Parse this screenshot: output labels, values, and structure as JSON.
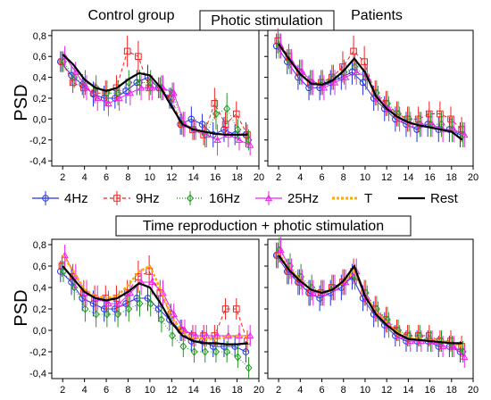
{
  "figure": {
    "label_control": "Control group",
    "label_patients": "Patients",
    "section_photic": "Photic stimulation",
    "section_time": "Time reproduction + photic stimulation",
    "ylabel": "PSD"
  },
  "legend": [
    {
      "key": "4hz",
      "label": "4Hz",
      "color": "#2233dd",
      "marker": "circle",
      "dash": "none"
    },
    {
      "key": "9hz",
      "label": "9Hz",
      "color": "#ee2222",
      "marker": "square",
      "dash": "4,3"
    },
    {
      "key": "16hz",
      "label": "16Hz",
      "color": "#229922",
      "marker": "diamond",
      "dash": "1,2"
    },
    {
      "key": "25hz",
      "label": "25Hz",
      "color": "#ee22ee",
      "marker": "triangle",
      "dash": "none"
    },
    {
      "key": "t",
      "label": "T",
      "color": "#ffaa00",
      "marker": "none",
      "dash": "3,2"
    },
    {
      "key": "rest",
      "label": "Rest",
      "color": "#000000",
      "marker": "none",
      "dash": "none"
    }
  ],
  "chart_data": [
    {
      "type": "line",
      "panel": "photic-control",
      "xlim": [
        1,
        20
      ],
      "ylim": [
        -0.45,
        0.85
      ],
      "xticks": [
        2,
        4,
        6,
        8,
        10,
        12,
        14,
        16,
        18,
        20
      ],
      "yticks": [
        -0.4,
        -0.2,
        0.0,
        0.2,
        0.4,
        0.6,
        0.8
      ],
      "ytick_labels": [
        "-0,4",
        "-0,2",
        "0,0",
        "0,2",
        "0,4",
        "0,6",
        "0,8"
      ],
      "x": [
        2,
        3,
        4,
        5,
        6,
        7,
        8,
        9,
        10,
        11,
        12,
        13,
        14,
        15,
        16,
        17,
        18,
        19
      ],
      "series": [
        {
          "name": "4Hz",
          "values": [
            0.55,
            0.42,
            0.33,
            0.24,
            0.2,
            0.2,
            0.27,
            0.35,
            0.4,
            0.3,
            0.2,
            -0.05,
            0.0,
            -0.05,
            -0.15,
            -0.1,
            -0.15,
            -0.15
          ],
          "err": [
            0.1,
            0.1,
            0.1,
            0.12,
            0.12,
            0.1,
            0.12,
            0.12,
            0.12,
            0.1,
            0.1,
            0.1,
            0.12,
            0.1,
            0.12,
            0.12,
            0.1,
            0.12
          ]
        },
        {
          "name": "9Hz",
          "values": [
            0.55,
            0.35,
            0.3,
            0.25,
            0.25,
            0.3,
            0.65,
            0.6,
            0.3,
            0.3,
            0.2,
            -0.05,
            -0.1,
            -0.15,
            0.15,
            -0.05,
            0.05,
            -0.15
          ],
          "err": [
            0.1,
            0.1,
            0.1,
            0.1,
            0.12,
            0.12,
            0.15,
            0.15,
            0.12,
            0.1,
            0.1,
            0.1,
            0.1,
            0.1,
            0.15,
            0.12,
            0.12,
            0.1
          ]
        },
        {
          "name": "16Hz",
          "values": [
            0.55,
            0.4,
            0.35,
            0.3,
            0.25,
            0.25,
            0.35,
            0.35,
            0.35,
            0.3,
            0.25,
            -0.05,
            -0.1,
            -0.15,
            0.05,
            0.1,
            -0.1,
            -0.2
          ],
          "err": [
            0.1,
            0.1,
            0.12,
            0.12,
            0.12,
            0.12,
            0.12,
            0.12,
            0.12,
            0.12,
            0.1,
            0.12,
            0.1,
            0.12,
            0.15,
            0.15,
            0.1,
            0.1
          ]
        },
        {
          "name": "25Hz",
          "values": [
            0.6,
            0.45,
            0.3,
            0.2,
            0.15,
            0.2,
            0.25,
            0.3,
            0.3,
            0.3,
            0.25,
            -0.05,
            -0.1,
            -0.15,
            -0.2,
            -0.15,
            -0.2,
            -0.25
          ],
          "err": [
            0.1,
            0.1,
            0.12,
            0.12,
            0.12,
            0.12,
            0.12,
            0.12,
            0.12,
            0.12,
            0.1,
            0.12,
            0.1,
            0.12,
            0.15,
            0.12,
            0.1,
            0.1
          ]
        },
        {
          "name": "Rest",
          "values": [
            0.62,
            0.52,
            0.38,
            0.3,
            0.27,
            0.3,
            0.38,
            0.44,
            0.42,
            0.3,
            0.12,
            -0.05,
            -0.1,
            -0.12,
            -0.14,
            -0.15,
            -0.15,
            -0.15
          ]
        }
      ]
    },
    {
      "type": "line",
      "panel": "photic-patients",
      "xlim": [
        1,
        20
      ],
      "ylim": [
        -0.45,
        0.85
      ],
      "xticks": [
        2,
        4,
        6,
        8,
        10,
        12,
        14,
        16,
        18,
        20
      ],
      "yticks": [
        -0.4,
        -0.2,
        0.0,
        0.2,
        0.4,
        0.6,
        0.8
      ],
      "ytick_labels": [
        "-0,4",
        "-0,2",
        "0,0",
        "0,2",
        "0,4",
        "0,6",
        "0,8"
      ],
      "x": [
        2,
        3,
        4,
        5,
        6,
        7,
        8,
        9,
        10,
        11,
        12,
        13,
        14,
        15,
        16,
        17,
        18,
        19
      ],
      "series": [
        {
          "name": "4Hz",
          "values": [
            0.7,
            0.55,
            0.4,
            0.3,
            0.3,
            0.35,
            0.4,
            0.45,
            0.35,
            0.2,
            0.1,
            0.0,
            -0.05,
            -0.1,
            -0.05,
            -0.1,
            -0.1,
            -0.15
          ],
          "err": [
            0.12,
            0.12,
            0.12,
            0.12,
            0.12,
            0.12,
            0.12,
            0.12,
            0.12,
            0.12,
            0.12,
            0.12,
            0.12,
            0.12,
            0.12,
            0.12,
            0.12,
            0.12
          ]
        },
        {
          "name": "9Hz",
          "values": [
            0.75,
            0.6,
            0.45,
            0.35,
            0.35,
            0.4,
            0.5,
            0.65,
            0.55,
            0.25,
            0.15,
            0.05,
            0.0,
            0.0,
            0.05,
            0.05,
            0.0,
            -0.1
          ],
          "err": [
            0.12,
            0.12,
            0.12,
            0.12,
            0.12,
            0.12,
            0.15,
            0.15,
            0.15,
            0.12,
            0.12,
            0.12,
            0.12,
            0.12,
            0.12,
            0.12,
            0.12,
            0.12
          ]
        },
        {
          "name": "16Hz",
          "values": [
            0.7,
            0.55,
            0.45,
            0.35,
            0.35,
            0.4,
            0.45,
            0.5,
            0.4,
            0.25,
            0.15,
            0.05,
            0.0,
            -0.05,
            -0.05,
            -0.05,
            -0.1,
            -0.15
          ],
          "err": [
            0.12,
            0.12,
            0.12,
            0.12,
            0.12,
            0.12,
            0.12,
            0.12,
            0.12,
            0.12,
            0.12,
            0.12,
            0.12,
            0.12,
            0.12,
            0.12,
            0.12,
            0.12
          ]
        },
        {
          "name": "25Hz",
          "values": [
            0.7,
            0.55,
            0.45,
            0.35,
            0.3,
            0.35,
            0.4,
            0.45,
            0.4,
            0.2,
            0.1,
            0.0,
            -0.05,
            -0.05,
            -0.05,
            -0.1,
            -0.1,
            -0.15
          ],
          "err": [
            0.12,
            0.12,
            0.12,
            0.12,
            0.12,
            0.12,
            0.12,
            0.12,
            0.12,
            0.12,
            0.12,
            0.12,
            0.12,
            0.12,
            0.12,
            0.12,
            0.12,
            0.12
          ]
        },
        {
          "name": "Rest",
          "values": [
            0.72,
            0.57,
            0.43,
            0.34,
            0.33,
            0.37,
            0.46,
            0.58,
            0.45,
            0.22,
            0.1,
            0.02,
            -0.03,
            -0.06,
            -0.08,
            -0.1,
            -0.12,
            -0.2
          ]
        }
      ]
    },
    {
      "type": "line",
      "panel": "time-control",
      "xlim": [
        1,
        20
      ],
      "ylim": [
        -0.45,
        0.85
      ],
      "xticks": [
        2,
        4,
        6,
        8,
        10,
        12,
        14,
        16,
        18,
        20
      ],
      "yticks": [
        -0.4,
        -0.2,
        0.0,
        0.2,
        0.4,
        0.6,
        0.8
      ],
      "ytick_labels": [
        "-0,4",
        "-0,2",
        "0,0",
        "0,2",
        "0,4",
        "0,6",
        "0,8"
      ],
      "x": [
        2,
        3,
        4,
        5,
        6,
        7,
        8,
        9,
        10,
        11,
        12,
        13,
        14,
        15,
        16,
        17,
        18,
        19
      ],
      "series": [
        {
          "name": "4Hz",
          "values": [
            0.55,
            0.45,
            0.3,
            0.25,
            0.2,
            0.2,
            0.25,
            0.3,
            0.3,
            0.2,
            0.1,
            0.0,
            -0.1,
            -0.1,
            -0.15,
            -0.15,
            -0.15,
            -0.2
          ],
          "err": [
            0.1,
            0.12,
            0.12,
            0.12,
            0.12,
            0.12,
            0.12,
            0.12,
            0.12,
            0.12,
            0.1,
            0.1,
            0.1,
            0.1,
            0.1,
            0.1,
            0.1,
            0.1
          ]
        },
        {
          "name": "9Hz",
          "values": [
            0.6,
            0.5,
            0.35,
            0.3,
            0.3,
            0.3,
            0.35,
            0.5,
            0.55,
            0.35,
            0.15,
            0.0,
            -0.05,
            -0.05,
            -0.05,
            0.2,
            0.2,
            -0.1
          ],
          "err": [
            0.1,
            0.12,
            0.12,
            0.12,
            0.12,
            0.12,
            0.12,
            0.15,
            0.15,
            0.12,
            0.1,
            0.1,
            0.1,
            0.1,
            0.1,
            0.1,
            0.1,
            0.1
          ]
        },
        {
          "name": "16Hz",
          "values": [
            0.55,
            0.4,
            0.2,
            0.15,
            0.15,
            0.15,
            0.2,
            0.25,
            0.25,
            0.1,
            -0.05,
            -0.15,
            -0.2,
            -0.2,
            -0.2,
            -0.2,
            -0.25,
            -0.35
          ],
          "err": [
            0.1,
            0.12,
            0.12,
            0.12,
            0.12,
            0.12,
            0.12,
            0.12,
            0.12,
            0.12,
            0.1,
            0.1,
            0.1,
            0.1,
            0.1,
            0.1,
            0.1,
            0.1
          ]
        },
        {
          "name": "25Hz",
          "values": [
            0.7,
            0.5,
            0.35,
            0.3,
            0.25,
            0.25,
            0.35,
            0.45,
            0.45,
            0.35,
            0.15,
            0.0,
            -0.05,
            -0.05,
            -0.05,
            -0.05,
            -0.05,
            -0.05
          ],
          "err": [
            0.1,
            0.12,
            0.12,
            0.12,
            0.12,
            0.12,
            0.12,
            0.12,
            0.12,
            0.12,
            0.1,
            0.1,
            0.1,
            0.1,
            0.1,
            0.1,
            0.1,
            0.1
          ]
        },
        {
          "name": "T",
          "values": [
            0.7,
            0.55,
            0.38,
            0.32,
            0.3,
            0.32,
            0.42,
            0.55,
            0.6,
            0.38,
            0.12,
            -0.02,
            -0.07,
            -0.08,
            -0.08,
            -0.06,
            -0.05,
            -0.06
          ]
        },
        {
          "name": "Rest",
          "values": [
            0.6,
            0.48,
            0.36,
            0.3,
            0.28,
            0.3,
            0.36,
            0.44,
            0.4,
            0.25,
            0.07,
            -0.05,
            -0.1,
            -0.12,
            -0.12,
            -0.13,
            -0.13,
            -0.12
          ]
        }
      ]
    },
    {
      "type": "line",
      "panel": "time-patients",
      "xlim": [
        1,
        20
      ],
      "ylim": [
        -0.45,
        0.85
      ],
      "xticks": [
        2,
        4,
        6,
        8,
        10,
        12,
        14,
        16,
        18,
        20
      ],
      "yticks": [
        -0.4,
        -0.2,
        0.0,
        0.2,
        0.4,
        0.6,
        0.8
      ],
      "ytick_labels": [
        "-0,4",
        "-0,2",
        "0,0",
        "0,2",
        "0,4",
        "0,6",
        "0,8"
      ],
      "x": [
        2,
        3,
        4,
        5,
        6,
        7,
        8,
        9,
        10,
        11,
        12,
        13,
        14,
        15,
        16,
        17,
        18,
        19
      ],
      "series": [
        {
          "name": "4Hz",
          "values": [
            0.7,
            0.55,
            0.45,
            0.35,
            0.3,
            0.35,
            0.4,
            0.5,
            0.3,
            0.15,
            0.05,
            -0.05,
            -0.1,
            -0.1,
            -0.1,
            -0.15,
            -0.15,
            -0.2
          ],
          "err": [
            0.12,
            0.12,
            0.12,
            0.12,
            0.12,
            0.12,
            0.12,
            0.12,
            0.12,
            0.12,
            0.12,
            0.1,
            0.1,
            0.1,
            0.1,
            0.1,
            0.1,
            0.1
          ]
        },
        {
          "name": "9Hz",
          "values": [
            0.7,
            0.55,
            0.45,
            0.35,
            0.35,
            0.4,
            0.45,
            0.55,
            0.35,
            0.2,
            0.1,
            0.0,
            -0.05,
            -0.05,
            -0.05,
            -0.1,
            -0.1,
            -0.15
          ],
          "err": [
            0.12,
            0.12,
            0.12,
            0.12,
            0.12,
            0.12,
            0.12,
            0.12,
            0.12,
            0.12,
            0.12,
            0.1,
            0.1,
            0.1,
            0.1,
            0.1,
            0.1,
            0.1
          ]
        },
        {
          "name": "16Hz",
          "values": [
            0.75,
            0.6,
            0.5,
            0.4,
            0.35,
            0.4,
            0.45,
            0.5,
            0.35,
            0.2,
            0.1,
            0.0,
            -0.05,
            -0.05,
            -0.1,
            -0.1,
            -0.15,
            -0.2
          ],
          "err": [
            0.12,
            0.12,
            0.12,
            0.12,
            0.12,
            0.12,
            0.12,
            0.12,
            0.12,
            0.12,
            0.12,
            0.1,
            0.1,
            0.1,
            0.1,
            0.1,
            0.1,
            0.1
          ]
        },
        {
          "name": "25Hz",
          "values": [
            0.75,
            0.55,
            0.45,
            0.35,
            0.35,
            0.4,
            0.45,
            0.55,
            0.3,
            0.15,
            0.05,
            -0.05,
            -0.1,
            -0.1,
            -0.1,
            -0.15,
            -0.15,
            -0.25
          ],
          "err": [
            0.12,
            0.12,
            0.12,
            0.12,
            0.12,
            0.12,
            0.12,
            0.12,
            0.12,
            0.12,
            0.12,
            0.1,
            0.1,
            0.1,
            0.1,
            0.1,
            0.1,
            0.1
          ]
        },
        {
          "name": "T",
          "values": [
            0.72,
            0.57,
            0.47,
            0.38,
            0.35,
            0.38,
            0.45,
            0.56,
            0.33,
            0.17,
            0.07,
            -0.02,
            -0.07,
            -0.08,
            -0.09,
            -0.1,
            -0.12,
            -0.15
          ]
        },
        {
          "name": "Rest",
          "values": [
            0.7,
            0.56,
            0.46,
            0.38,
            0.35,
            0.38,
            0.46,
            0.6,
            0.32,
            0.15,
            0.05,
            -0.03,
            -0.08,
            -0.09,
            -0.1,
            -0.11,
            -0.12,
            -0.12
          ]
        }
      ]
    }
  ]
}
